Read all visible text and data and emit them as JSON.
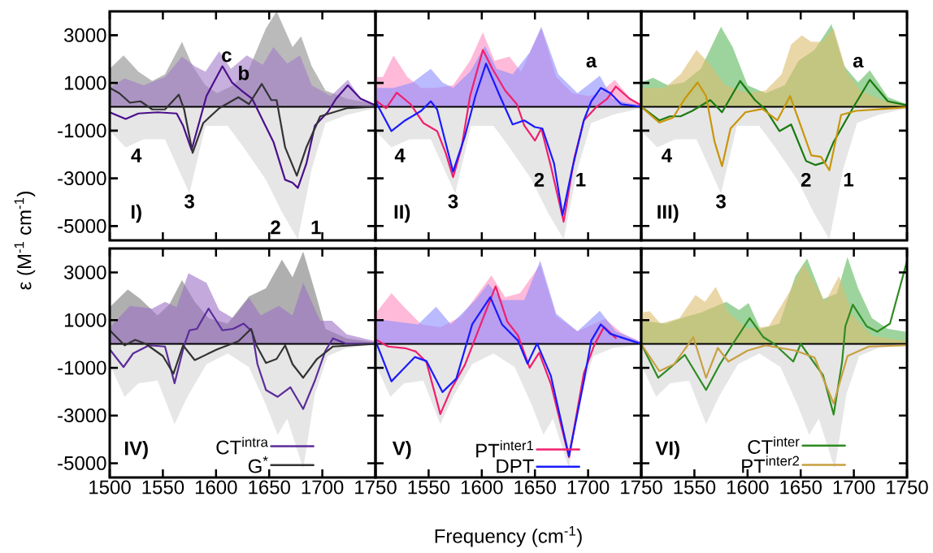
{
  "chart_data": [
    {
      "type": "line",
      "xlim": [
        1500,
        1750
      ],
      "ylim": [
        -5600,
        4000
      ],
      "xticks": [
        1500,
        1550,
        1600,
        1650,
        1700,
        1750
      ],
      "yticks": [
        -5000,
        -3000,
        -1000,
        1000,
        3000
      ],
      "tick_labels": "y",
      "ylabel": "ε (M$^{-1}$ cm$^{-1}$)",
      "ref_lines": [
        {
          "axis": "y",
          "value": 0
        }
      ],
      "annotations": [
        "I)",
        "4",
        "3",
        "2",
        "1",
        "c",
        "b"
      ],
      "series": [
        {
          "type": "area",
          "color": "#e6e6e6",
          "x": [
            1500,
            1515,
            1532,
            1552,
            1575,
            1590,
            1611,
            1626,
            1647,
            1662,
            1677,
            1690,
            1703,
            1723,
            1750
          ],
          "values": [
            -1000,
            -1700,
            -1360,
            -1360,
            -3630,
            -800,
            -800,
            -1700,
            -3060,
            -4420,
            -5560,
            -2600,
            -680,
            -340,
            -60
          ]
        },
        {
          "type": "area",
          "color": "#8c8c8c",
          "x": [
            1500,
            1513,
            1527,
            1540,
            1552,
            1568,
            1578,
            1590,
            1601,
            1616,
            1631,
            1647,
            1657,
            1672,
            1680,
            1690,
            1703,
            1723,
            1750
          ],
          "values": [
            1590,
            2150,
            1470,
            1080,
            1360,
            2720,
            1700,
            900,
            570,
            900,
            1590,
            3290,
            4000,
            2500,
            2950,
            1700,
            680,
            340,
            110
          ]
        },
        {
          "type": "area",
          "color": "#a27cc8",
          "x": [
            1500,
            1514,
            1532,
            1552,
            1568,
            1580,
            1590,
            1603,
            1614,
            1629,
            1644,
            1654,
            1667,
            1679,
            1690,
            1708,
            1724,
            1736,
            1750
          ],
          "values": [
            790,
            1190,
            900,
            1250,
            2100,
            1700,
            1470,
            2320,
            1590,
            2150,
            1760,
            2500,
            1810,
            2150,
            900,
            450,
            1130,
            340,
            110
          ]
        },
        {
          "type": "line",
          "color": "#4b0f8c",
          "x": [
            1500,
            1515,
            1527,
            1545,
            1563,
            1569,
            1577,
            1584,
            1591,
            1606,
            1615,
            1624,
            1634,
            1644,
            1654,
            1665,
            1672,
            1677,
            1685,
            1693,
            1705,
            1713,
            1724,
            1736,
            1750
          ],
          "values": [
            -230,
            -510,
            -280,
            -230,
            -280,
            -790,
            -1810,
            -680,
            450,
            1700,
            1020,
            680,
            340,
            -570,
            -1470,
            -3060,
            -3180,
            -3400,
            -2380,
            -790,
            -230,
            340,
            900,
            340,
            60
          ]
        },
        {
          "type": "line",
          "color": "#333333",
          "x": [
            1500,
            1509,
            1519,
            1529,
            1540,
            1552,
            1565,
            1570,
            1578,
            1588,
            1603,
            1621,
            1631,
            1643,
            1652,
            1657,
            1665,
            1676,
            1685,
            1698,
            1723,
            1750
          ],
          "values": [
            790,
            570,
            170,
            230,
            -110,
            -110,
            510,
            -110,
            -1930,
            -680,
            -60,
            400,
            110,
            960,
            280,
            280,
            -1700,
            -2890,
            -1700,
            -400,
            -60,
            0
          ]
        }
      ]
    },
    {
      "type": "line",
      "xlim": [
        1500,
        1750
      ],
      "ylim": [
        -5600,
        4000
      ],
      "xticks": [
        1550,
        1600,
        1650,
        1700,
        1750
      ],
      "yticks": [
        -5000,
        -3000,
        -1000,
        1000,
        3000
      ],
      "tick_labels": false,
      "ref_lines": [
        {
          "axis": "y",
          "value": 0
        }
      ],
      "annotations": [
        "II)",
        "4",
        "3",
        "2",
        "1",
        "a"
      ],
      "series": [
        {
          "type": "area",
          "color": "#e6e6e6",
          "x": [
            1500,
            1515,
            1532,
            1552,
            1575,
            1590,
            1611,
            1626,
            1647,
            1662,
            1677,
            1690,
            1703,
            1723,
            1750
          ],
          "values": [
            -1000,
            -1700,
            -1360,
            -1360,
            -3630,
            -800,
            -800,
            -1700,
            -3060,
            -4420,
            -5560,
            -2600,
            -680,
            -340,
            -60
          ]
        },
        {
          "type": "area",
          "color": "#ff8cc0",
          "x": [
            1500,
            1507,
            1517,
            1530,
            1543,
            1556,
            1573,
            1589,
            1601,
            1612,
            1626,
            1637,
            1656,
            1670,
            1685,
            1701,
            1711,
            1725,
            1740,
            1750
          ],
          "values": [
            1250,
            1250,
            2150,
            1250,
            790,
            790,
            900,
            1930,
            3120,
            1930,
            2100,
            1470,
            3290,
            1250,
            570,
            450,
            570,
            1130,
            340,
            110
          ]
        },
        {
          "type": "area",
          "color": "#8c8cff",
          "x": [
            1500,
            1517,
            1535,
            1552,
            1563,
            1573,
            1589,
            1603,
            1614,
            1629,
            1645,
            1656,
            1672,
            1690,
            1711,
            1723,
            1736,
            1750
          ],
          "values": [
            790,
            790,
            1020,
            1590,
            1020,
            790,
            1470,
            2550,
            1590,
            1360,
            2270,
            3350,
            1360,
            570,
            1300,
            340,
            170,
            60
          ]
        },
        {
          "type": "line",
          "color": "#f0206e",
          "x": [
            1500,
            1510,
            1520,
            1533,
            1545,
            1558,
            1566,
            1573,
            1581,
            1589,
            1601,
            1610,
            1622,
            1633,
            1640,
            1650,
            1656,
            1665,
            1677,
            1687,
            1696,
            1708,
            1718,
            1726,
            1739,
            1750
          ],
          "values": [
            280,
            -60,
            590,
            110,
            -680,
            -1020,
            -1930,
            -2950,
            -1700,
            450,
            2380,
            1590,
            680,
            110,
            -790,
            -1420,
            -910,
            -2490,
            -4820,
            -2150,
            -570,
            0,
            340,
            850,
            340,
            60
          ]
        },
        {
          "type": "line",
          "color": "#1a1aff",
          "x": [
            1500,
            1515,
            1528,
            1543,
            1552,
            1558,
            1573,
            1584,
            1594,
            1604,
            1617,
            1629,
            1640,
            1650,
            1657,
            1668,
            1676,
            1685,
            1696,
            1703,
            1712,
            1721,
            1731,
            1750
          ],
          "values": [
            230,
            -1020,
            -570,
            -170,
            230,
            -110,
            -2720,
            -1250,
            450,
            1810,
            450,
            -740,
            -570,
            -850,
            -910,
            -2380,
            -4540,
            -2610,
            -570,
            230,
            790,
            570,
            110,
            0
          ]
        }
      ]
    },
    {
      "type": "line",
      "xlim": [
        1500,
        1750
      ],
      "ylim": [
        -5600,
        4000
      ],
      "xticks": [
        1550,
        1600,
        1650,
        1700,
        1750
      ],
      "yticks": [
        -5000,
        -3000,
        -1000,
        1000,
        3000
      ],
      "tick_labels": false,
      "ref_lines": [
        {
          "axis": "y",
          "value": 0
        }
      ],
      "annotations": [
        "III)",
        "4",
        "3",
        "2",
        "1",
        "a"
      ],
      "series": [
        {
          "type": "area",
          "color": "#e6e6e6",
          "x": [
            1500,
            1515,
            1532,
            1552,
            1575,
            1590,
            1611,
            1626,
            1647,
            1662,
            1677,
            1690,
            1703,
            1723,
            1750
          ],
          "values": [
            -1000,
            -1700,
            -1360,
            -1360,
            -3630,
            -800,
            -800,
            -1700,
            -3060,
            -4420,
            -5560,
            -2600,
            -680,
            -340,
            -60
          ]
        },
        {
          "type": "area",
          "color": "#5cb85c",
          "x": [
            1500,
            1511,
            1525,
            1540,
            1556,
            1575,
            1586,
            1600,
            1617,
            1635,
            1648,
            1663,
            1679,
            1691,
            1704,
            1715,
            1732,
            1750
          ],
          "values": [
            1020,
            1220,
            900,
            1020,
            1590,
            3350,
            2500,
            900,
            570,
            900,
            1930,
            2380,
            3460,
            1700,
            1020,
            1530,
            400,
            110
          ]
        },
        {
          "type": "area",
          "color": "#dcbc6e",
          "x": [
            1500,
            1522,
            1537,
            1552,
            1564,
            1579,
            1600,
            1617,
            1632,
            1641,
            1651,
            1660,
            1670,
            1681,
            1693,
            1706,
            1727,
            1750
          ],
          "values": [
            790,
            790,
            1360,
            2380,
            1810,
            900,
            570,
            680,
            1360,
            2610,
            3000,
            2720,
            2720,
            3290,
            1470,
            680,
            280,
            110
          ]
        },
        {
          "type": "line",
          "color": "#1a7a10",
          "x": [
            1500,
            1517,
            1527,
            1537,
            1548,
            1565,
            1576,
            1593,
            1607,
            1617,
            1630,
            1641,
            1655,
            1664,
            1673,
            1681,
            1699,
            1715,
            1732,
            1750
          ],
          "values": [
            0,
            -570,
            -400,
            -400,
            -170,
            280,
            -230,
            1080,
            280,
            -110,
            -1020,
            -740,
            -2270,
            -2440,
            -2320,
            -1470,
            -60,
            1130,
            230,
            60
          ]
        },
        {
          "type": "line",
          "color": "#c8960a",
          "x": [
            1500,
            1517,
            1530,
            1541,
            1553,
            1561,
            1569,
            1576,
            1584,
            1598,
            1614,
            1628,
            1640,
            1650,
            1660,
            1669,
            1677,
            1688,
            1702,
            1750
          ],
          "values": [
            0,
            -660,
            -450,
            340,
            1020,
            450,
            -1470,
            -2490,
            -910,
            -230,
            -90,
            -570,
            450,
            -790,
            -2040,
            -2100,
            -2660,
            -340,
            -170,
            -20
          ]
        }
      ]
    },
    {
      "type": "line",
      "xlim": [
        1500,
        1750
      ],
      "ylim": [
        -5600,
        4000
      ],
      "xticks": [
        1500,
        1550,
        1600,
        1650,
        1700,
        1750
      ],
      "yticks": [
        -5000,
        -3000,
        -1000,
        1000,
        3000
      ],
      "legend": "bottom right",
      "ref_lines": [
        {
          "axis": "y",
          "value": 0
        }
      ],
      "annotations": [
        "IV)"
      ],
      "series": [
        {
          "type": "area",
          "color": "#e6e6e6",
          "x": [
            1500,
            1514,
            1527,
            1545,
            1561,
            1573,
            1591,
            1611,
            1631,
            1647,
            1658,
            1667,
            1682,
            1693,
            1705,
            1723,
            1750
          ],
          "values": [
            -850,
            -2220,
            -1650,
            -1540,
            -3360,
            -2220,
            -850,
            -400,
            -970,
            -2560,
            -3810,
            -3130,
            -5230,
            -2110,
            -510,
            -170,
            -30
          ]
        },
        {
          "type": "area",
          "color": "#7a7a7a",
          "x": [
            1500,
            1517,
            1529,
            1545,
            1556,
            1568,
            1580,
            1593,
            1611,
            1631,
            1647,
            1662,
            1672,
            1682,
            1693,
            1703,
            1723,
            1750
          ],
          "values": [
            1540,
            2280,
            1880,
            1190,
            1650,
            2670,
            1760,
            1080,
            850,
            1990,
            2330,
            3530,
            2790,
            3870,
            2220,
            630,
            230,
            60
          ]
        },
        {
          "type": "area",
          "color": "#9b70c4",
          "x": [
            1500,
            1519,
            1540,
            1552,
            1563,
            1574,
            1591,
            1603,
            1616,
            1631,
            1642,
            1659,
            1672,
            1682,
            1698,
            1709,
            1723,
            1750
          ],
          "values": [
            680,
            1590,
            1480,
            1760,
            1540,
            2960,
            2560,
            1420,
            1080,
            1930,
            1190,
            1590,
            1190,
            2560,
            970,
            970,
            400,
            110
          ]
        },
        {
          "name": "CT$^{intra}$",
          "type": "line",
          "color": "#5b2c9a",
          "x": [
            1500,
            1513,
            1522,
            1537,
            1552,
            1561,
            1570,
            1575,
            1582,
            1593,
            1606,
            1616,
            1626,
            1634,
            1639,
            1647,
            1658,
            1670,
            1682,
            1693,
            1703,
            1710,
            1723,
            1750
          ],
          "values": [
            -230,
            -970,
            -400,
            -60,
            -110,
            -1650,
            -60,
            570,
            630,
            1480,
            570,
            630,
            850,
            510,
            -850,
            -1930,
            -2220,
            -1820,
            -2730,
            -1540,
            -280,
            230,
            0,
            0
          ]
        },
        {
          "name": "G$^{*}$",
          "type": "line",
          "color": "#333333",
          "x": [
            1500,
            1514,
            1524,
            1534,
            1550,
            1560,
            1569,
            1580,
            1601,
            1621,
            1633,
            1638,
            1647,
            1657,
            1665,
            1672,
            1682,
            1695,
            1710,
            1750
          ],
          "values": [
            570,
            -60,
            170,
            0,
            -510,
            -1250,
            -60,
            -680,
            -230,
            110,
            630,
            -60,
            -800,
            -630,
            -60,
            -850,
            -1420,
            -630,
            -110,
            0
          ]
        }
      ]
    },
    {
      "type": "line",
      "xlim": [
        1500,
        1750
      ],
      "ylim": [
        -5600,
        4000
      ],
      "xticks": [
        1550,
        1600,
        1650,
        1700,
        1750
      ],
      "yticks": [
        -5000,
        -3000,
        -1000,
        1000,
        3000
      ],
      "tick_labels": "x",
      "legend": "bottom right",
      "xlabel": "Frequency (cm$^{-1}$)",
      "ref_lines": [
        {
          "axis": "y",
          "value": 0
        }
      ],
      "annotations": [
        "V)"
      ],
      "series": [
        {
          "type": "area",
          "color": "#e6e6e6",
          "x": [
            1500,
            1514,
            1527,
            1545,
            1561,
            1573,
            1591,
            1611,
            1631,
            1647,
            1658,
            1667,
            1682,
            1693,
            1705,
            1723,
            1750
          ],
          "values": [
            -850,
            -2220,
            -1650,
            -1540,
            -3360,
            -2220,
            -850,
            -400,
            -970,
            -2560,
            -3810,
            -3130,
            -5230,
            -2110,
            -510,
            -170,
            -30
          ]
        },
        {
          "type": "area",
          "color": "#ff8cc0",
          "x": [
            1500,
            1515,
            1528,
            1543,
            1561,
            1581,
            1594,
            1609,
            1622,
            1636,
            1655,
            1670,
            1690,
            1716,
            1731,
            1750
          ],
          "values": [
            1270,
            2130,
            1500,
            820,
            700,
            1160,
            1960,
            2870,
            1960,
            2130,
            3320,
            1160,
            530,
            1050,
            480,
            80
          ]
        },
        {
          "type": "area",
          "color": "#8c8cff",
          "x": [
            1500,
            1520,
            1540,
            1557,
            1571,
            1594,
            1606,
            1619,
            1640,
            1655,
            1670,
            1690,
            1711,
            1726,
            1750
          ],
          "values": [
            1050,
            930,
            820,
            1560,
            820,
            1840,
            2530,
            1840,
            1840,
            3490,
            1270,
            530,
            1390,
            530,
            80
          ]
        },
        {
          "name": "PT$^{inter1}$",
          "color": "#f0206e",
          "x": [
            1500,
            1512,
            1528,
            1538,
            1548,
            1561,
            1571,
            1584,
            1594,
            1604,
            1613,
            1624,
            1634,
            1645,
            1654,
            1665,
            1682,
            1696,
            1706,
            1715,
            1726
          ],
          "values": [
            190,
            -110,
            -180,
            -320,
            -770,
            -2940,
            -1910,
            -890,
            250,
            1390,
            2410,
            930,
            360,
            -1000,
            -370,
            -1680,
            -4750,
            -1230,
            -30,
            710,
            250
          ]
        },
        {
          "name": "DPT",
          "type": "line",
          "color": "#1a1aff",
          "x": [
            1500,
            1515,
            1525,
            1537,
            1548,
            1563,
            1576,
            1591,
            1608,
            1619,
            1634,
            1643,
            1652,
            1665,
            1682,
            1696,
            1703,
            1712,
            1721,
            1750
          ],
          "values": [
            140,
            -1570,
            -1110,
            -550,
            -720,
            -2020,
            -1460,
            820,
            1960,
            820,
            140,
            -830,
            20,
            -1340,
            -4700,
            -1570,
            140,
            820,
            420,
            0
          ]
        }
      ]
    },
    {
      "type": "line",
      "xlim": [
        1500,
        1750
      ],
      "ylim": [
        -5600,
        4000
      ],
      "xticks": [
        1550,
        1600,
        1650,
        1700,
        1750
      ],
      "yticks": [
        -5000,
        -3000,
        -1000,
        1000,
        3000
      ],
      "tick_labels": "x",
      "legend": "bottom right",
      "ref_lines": [
        {
          "axis": "y",
          "value": 0
        }
      ],
      "annotations": [
        "VI)"
      ],
      "series": [
        {
          "type": "area",
          "color": "#e6e6e6",
          "x": [
            1500,
            1514,
            1527,
            1545,
            1561,
            1573,
            1591,
            1611,
            1631,
            1647,
            1658,
            1667,
            1682,
            1693,
            1705,
            1723,
            1750
          ],
          "values": [
            -850,
            -2220,
            -1650,
            -1540,
            -3360,
            -2220,
            -850,
            -400,
            -970,
            -2560,
            -3810,
            -3130,
            -5230,
            -2110,
            -510,
            -170,
            -30
          ]
        },
        {
          "type": "area",
          "color": "#5cb85c",
          "x": [
            1500,
            1523,
            1542,
            1556,
            1568,
            1580,
            1592,
            1601,
            1612,
            1630,
            1645,
            1656,
            1671,
            1684,
            1694,
            1704,
            1717,
            1732,
            1750
          ],
          "values": [
            970,
            850,
            1140,
            1310,
            1540,
            1760,
            1420,
            1710,
            630,
            850,
            2840,
            3580,
            1880,
            2110,
            3640,
            2330,
            1080,
            630,
            500
          ]
        },
        {
          "type": "area",
          "color": "#dcbc6e",
          "x": [
            1500,
            1508,
            1518,
            1536,
            1551,
            1560,
            1570,
            1582,
            1600,
            1620,
            1640,
            1653,
            1673,
            1686,
            1699,
            1717,
            1750
          ],
          "values": [
            1310,
            1370,
            850,
            1080,
            2050,
            1760,
            2390,
            1310,
            630,
            740,
            2220,
            3360,
            1760,
            2840,
            1190,
            340,
            110
          ]
        },
        {
          "name": "CT$^{inter}$",
          "type": "line",
          "color": "#2e8b22",
          "x": [
            1500,
            1516,
            1528,
            1541,
            1561,
            1574,
            1587,
            1602,
            1615,
            1625,
            1643,
            1650,
            1658,
            1671,
            1681,
            1689,
            1692,
            1699,
            1712,
            1722,
            1734,
            1750
          ],
          "values": [
            0,
            -1420,
            -970,
            -460,
            -1930,
            -850,
            60,
            1080,
            280,
            0,
            -740,
            0,
            -510,
            -1310,
            -2960,
            -740,
            740,
            1650,
            740,
            510,
            850,
            3470
          ]
        },
        {
          "name": "PT$^{inter2}$",
          "type": "line",
          "color": "#c8a040",
          "x": [
            1500,
            1517,
            1531,
            1549,
            1561,
            1572,
            1582,
            1600,
            1617,
            1645,
            1663,
            1681,
            1694,
            1714,
            1750
          ],
          "values": [
            0,
            -1140,
            -850,
            280,
            -1420,
            -170,
            -740,
            -280,
            -60,
            -280,
            -570,
            -2500,
            -510,
            -110,
            -60
          ]
        }
      ]
    }
  ]
}
